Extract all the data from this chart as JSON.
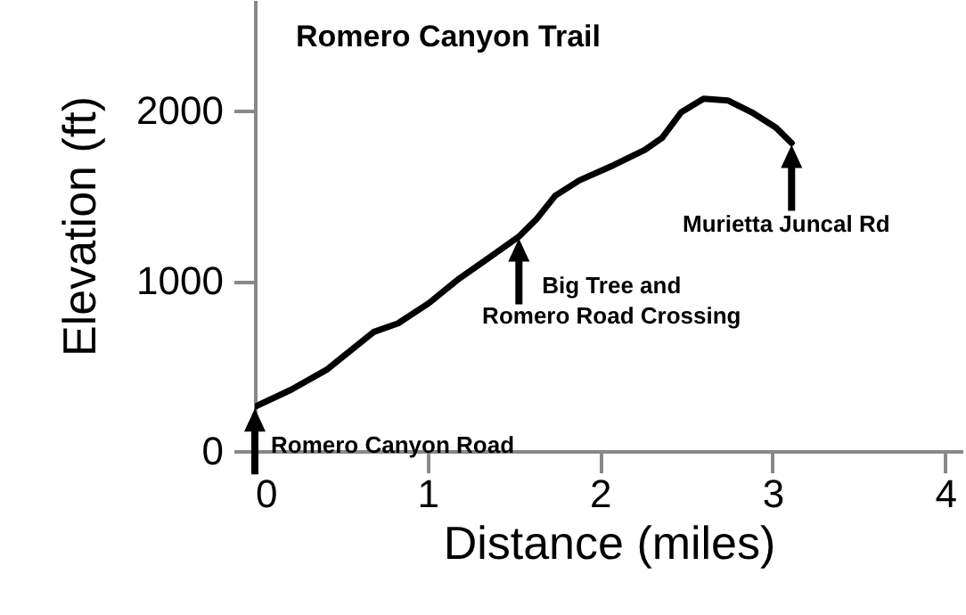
{
  "chart_data": {
    "type": "line",
    "title": "Romero Canyon Trail",
    "xlabel": "Distance (miles)",
    "ylabel": "Elevation (ft)",
    "x": [
      0,
      0.21,
      0.42,
      0.69,
      0.83,
      1.01,
      1.18,
      1.35,
      1.53,
      1.63,
      1.74,
      1.88,
      2.08,
      2.26,
      2.36,
      2.47,
      2.6,
      2.74,
      2.88,
      3.02,
      3.11
    ],
    "series": [
      {
        "color": "#000000",
        "values": [
          260,
          360,
          480,
          700,
          750,
          870,
          1010,
          1130,
          1260,
          1360,
          1500,
          1590,
          1680,
          1770,
          1840,
          1990,
          2070,
          2060,
          1990,
          1900,
          1810
        ]
      }
    ],
    "xlim": [
      0,
      4.1
    ],
    "ylim": [
      0,
      2650
    ],
    "xticks": [
      0,
      1,
      2,
      3,
      4
    ],
    "yticks": [
      0,
      1000,
      2000
    ],
    "grid": false,
    "marker": "none",
    "line_style": "solid",
    "annotations": [
      {
        "text": "Romero Canyon Road",
        "x": 0,
        "y": 260
      },
      {
        "text": "Big Tree and\nRomero Road Crossing",
        "x": 1.53,
        "y": 1260
      },
      {
        "text": "Murietta Juncal Rd",
        "x": 3.11,
        "y": 1810
      }
    ]
  }
}
